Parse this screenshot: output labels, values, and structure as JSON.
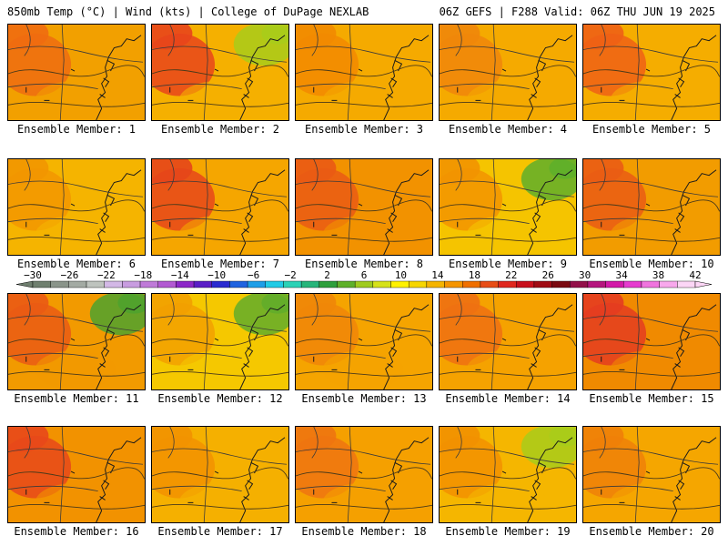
{
  "header": {
    "left": "850mb Temp (°C) | Wind (kts) | College of DuPage NEXLAB",
    "right": "06Z GEFS | F288 Valid: 06Z THU JUN 19 2025"
  },
  "members": [
    {
      "label": "Ensemble Member: 1",
      "base": "#f2a000",
      "hot": "#ef6c10",
      "cool": null
    },
    {
      "label": "Ensemble Member: 2",
      "base": "#f5b000",
      "hot": "#e8451b",
      "cool": "#a8cc1a"
    },
    {
      "label": "Ensemble Member: 3",
      "base": "#f5aa00",
      "hot": "#f28a00",
      "cool": null
    },
    {
      "label": "Ensemble Member: 4",
      "base": "#f5aa00",
      "hot": "#f0860a",
      "cool": null
    },
    {
      "label": "Ensemble Member: 5",
      "base": "#f5ad00",
      "hot": "#ee6015",
      "cool": null
    },
    {
      "label": "Ensemble Member: 6",
      "base": "#f5b400",
      "hot": "#f29600",
      "cool": null
    },
    {
      "label": "Ensemble Member: 7",
      "base": "#f5a600",
      "hot": "#e6461a",
      "cool": null
    },
    {
      "label": "Ensemble Member: 8",
      "base": "#f29200",
      "hot": "#ea5a14",
      "cool": null
    },
    {
      "label": "Ensemble Member: 9",
      "base": "#f5c400",
      "hot": "#f29400",
      "cool": "#5faf2a"
    },
    {
      "label": "Ensemble Member: 10",
      "base": "#f29c00",
      "hot": "#ea5c14",
      "cool": null
    },
    {
      "label": "Ensemble Member: 11",
      "base": "#f29a00",
      "hot": "#ea5a14",
      "cool": "#4fa22e"
    },
    {
      "label": "Ensemble Member: 12",
      "base": "#f5c800",
      "hot": "#f2a000",
      "cool": "#62ad2a"
    },
    {
      "label": "Ensemble Member: 13",
      "base": "#f5a400",
      "hot": "#f08608",
      "cool": null
    },
    {
      "label": "Ensemble Member: 14",
      "base": "#f5a200",
      "hot": "#ee7012",
      "cool": null
    },
    {
      "label": "Ensemble Member: 15",
      "base": "#f08a00",
      "hot": "#e43c20",
      "cool": null
    },
    {
      "label": "Ensemble Member: 16",
      "base": "#f29200",
      "hot": "#e8481a",
      "cool": null
    },
    {
      "label": "Ensemble Member: 17",
      "base": "#f5b000",
      "hot": "#f29200",
      "cool": null
    },
    {
      "label": "Ensemble Member: 18",
      "base": "#f5a000",
      "hot": "#ee7410",
      "cool": null
    },
    {
      "label": "Ensemble Member: 19",
      "base": "#f5b600",
      "hot": "#f29000",
      "cool": "#a8cc1a"
    },
    {
      "label": "Ensemble Member: 20",
      "base": "#f5a600",
      "hot": "#ef8008",
      "cool": null
    }
  ],
  "colorbar": {
    "labels": [
      "−30",
      "−26",
      "−22",
      "−18",
      "−14",
      "−10",
      "−6",
      "−2",
      "2",
      "6",
      "10",
      "14",
      "18",
      "22",
      "26",
      "30",
      "34",
      "38",
      "42"
    ],
    "colors": [
      "#6f7f6f",
      "#8a948a",
      "#a3aaa3",
      "#bec3be",
      "#d3b8e6",
      "#c89ce0",
      "#bf7ad8",
      "#b25ad2",
      "#8c28c8",
      "#5a1ec6",
      "#2a2ad0",
      "#1f63e0",
      "#1e9ee8",
      "#22cbe6",
      "#2cd2b6",
      "#27b57a",
      "#2e9f3c",
      "#5fb02a",
      "#9fcb1e",
      "#d6e21a",
      "#fff200",
      "#f7d600",
      "#f5b400",
      "#f59400",
      "#f07000",
      "#e84e16",
      "#e0281e",
      "#c8101c",
      "#a00c14",
      "#7a0a10",
      "#92104a",
      "#b5167e",
      "#d31aa8",
      "#e63ccf",
      "#f074de",
      "#f8a8ec",
      "#fcd6f6"
    ]
  }
}
